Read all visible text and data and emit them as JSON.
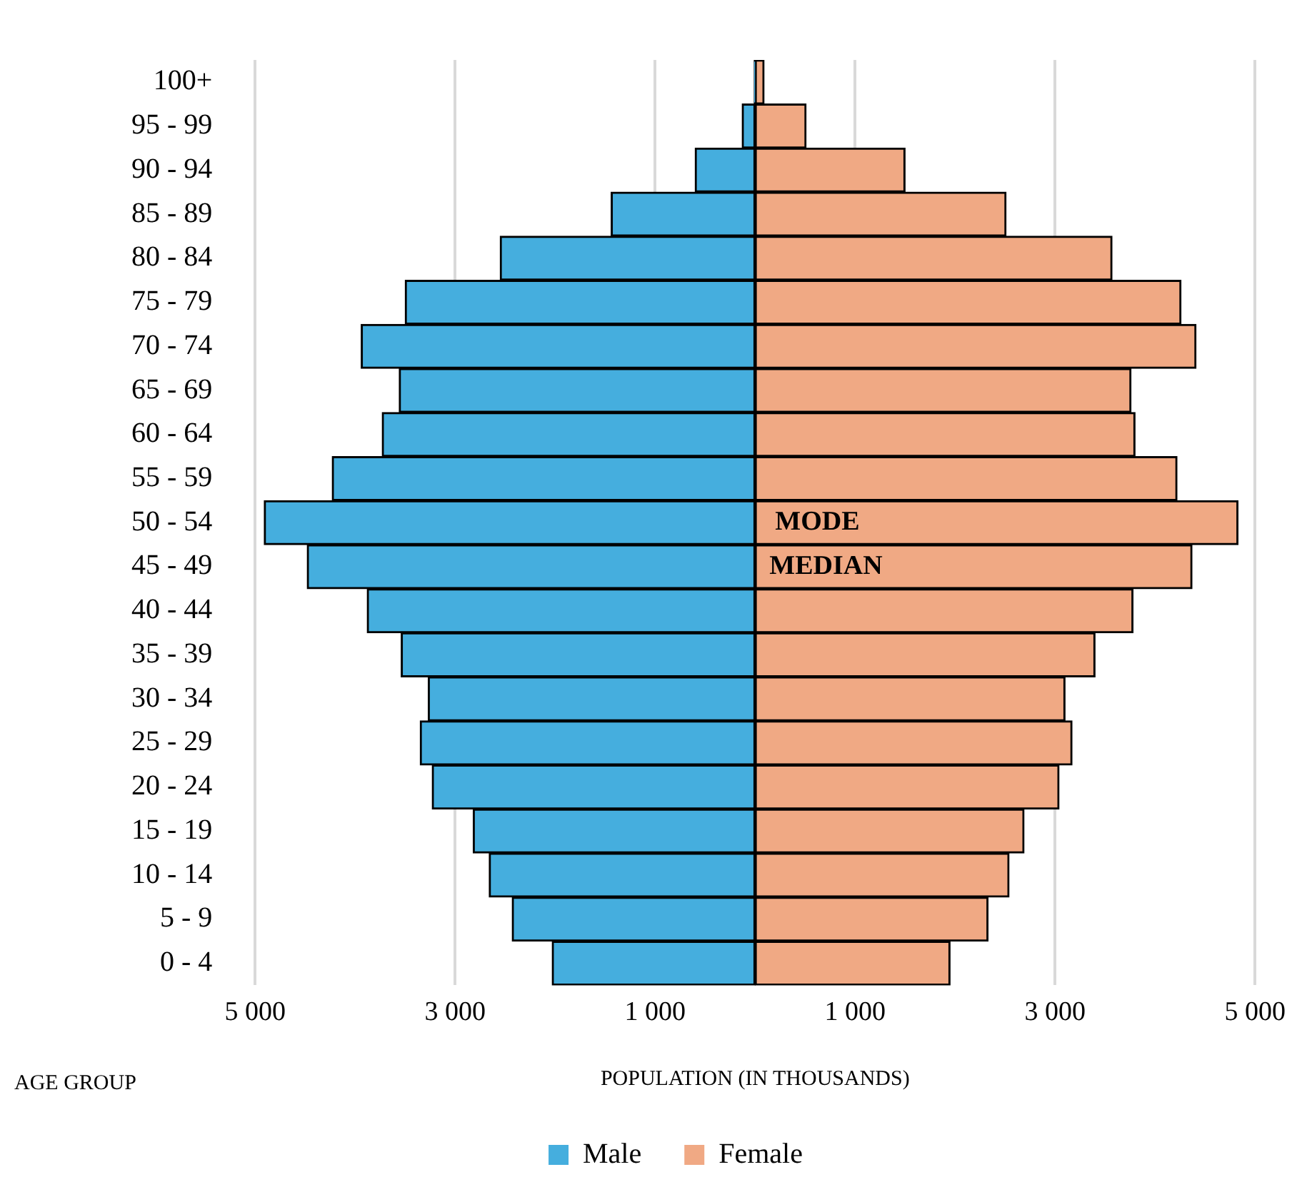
{
  "chart_data": {
    "type": "bar",
    "orientation": "horizontal",
    "stacked": true,
    "xlabel": "POPULATION (IN THOUSANDS)",
    "ylabel": "AGE GROUP",
    "categories": [
      "100+",
      "95 - 99",
      "90 - 94",
      "85 - 89",
      "80 - 84",
      "75 - 79",
      "70 - 74",
      "65 - 69",
      "60 - 64",
      "55 - 59",
      "50 - 54",
      "45 - 49",
      "40 - 44",
      "35 - 39",
      "30 - 34",
      "25 - 29",
      "20 - 24",
      "15 - 19",
      "10 - 14",
      "5 - 9",
      "0 - 4"
    ],
    "series": [
      {
        "name": "Male",
        "color": "#45aede",
        "values": [
          -10,
          -130,
          -600,
          -1440,
          -2550,
          -3500,
          -3940,
          -3560,
          -3730,
          -4230,
          -4910,
          -4480,
          -3880,
          -3540,
          -3270,
          -3350,
          -3230,
          -2820,
          -2660,
          -2430,
          -2030
        ]
      },
      {
        "name": "Female",
        "color": "#f0a984",
        "values": [
          90,
          510,
          1500,
          2510,
          3570,
          4260,
          4410,
          3760,
          3800,
          4220,
          4830,
          4370,
          3780,
          3400,
          3100,
          3170,
          3040,
          2690,
          2540,
          2330,
          1950
        ]
      }
    ],
    "xlim": [
      -5000,
      5000
    ],
    "xticks": [
      {
        "value": -5000,
        "label": "5 000"
      },
      {
        "value": -3000,
        "label": "3 000"
      },
      {
        "value": -1000,
        "label": "1 000"
      },
      {
        "value": 1000,
        "label": "1 000"
      },
      {
        "value": 3000,
        "label": "3 000"
      },
      {
        "value": 5000,
        "label": "5 000"
      }
    ],
    "annotations": [
      "MODE",
      "MEDIAN"
    ],
    "grid": "x",
    "legend": "bottom"
  }
}
